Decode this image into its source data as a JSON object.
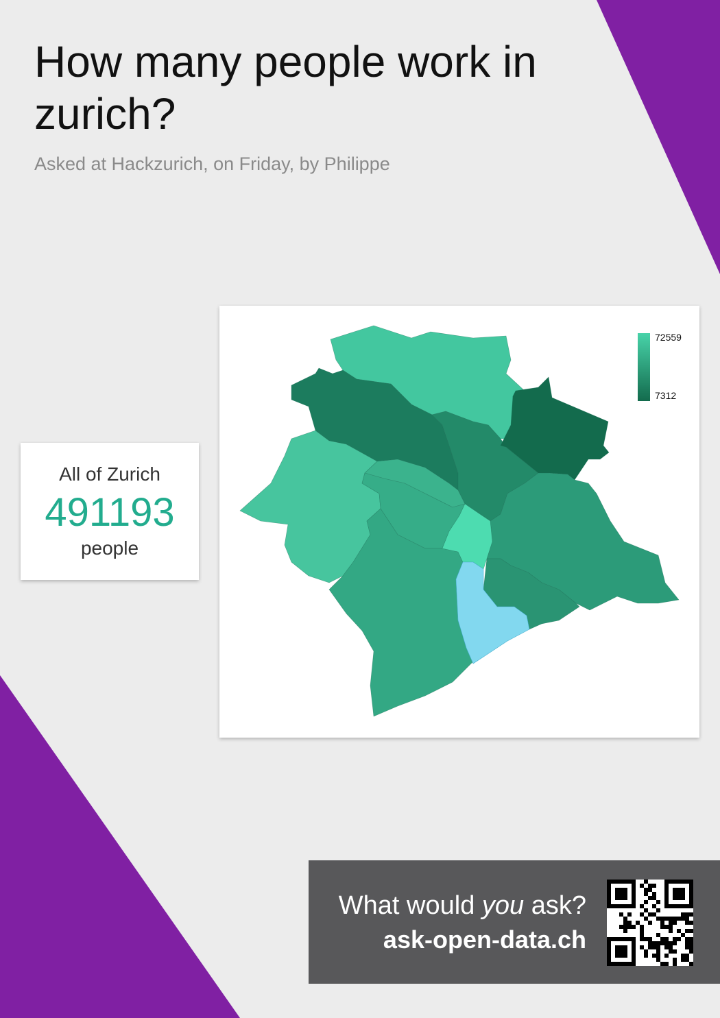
{
  "header": {
    "title": "How many people work in zurich?",
    "subtitle": "Asked at Hackzurich, on Friday, by Philippe"
  },
  "stat": {
    "label": "All of Zurich",
    "value": "491193",
    "unit": "people",
    "value_color": "#22ac8e"
  },
  "map": {
    "legend": {
      "max_label": "72559",
      "min_label": "7312",
      "max_color": "#48d3a9",
      "min_color": "#136b4d"
    },
    "lake_color": "#82d8ef",
    "district_colors": [
      "#43c79f",
      "#1c7c5e",
      "#47c59e",
      "#238a69",
      "#136b4d",
      "#3bb38d",
      "#36ad88",
      "#33a884",
      "#2c9b79",
      "#2a9473",
      "#4ddcb0"
    ]
  },
  "cta": {
    "question_before": "What would ",
    "question_emphasis": "you",
    "question_after": " ask?",
    "url": "ask-open-data.ch"
  },
  "colors": {
    "accent_purple": "#8020a3",
    "background": "#ececec",
    "cta_background": "#58585a"
  }
}
